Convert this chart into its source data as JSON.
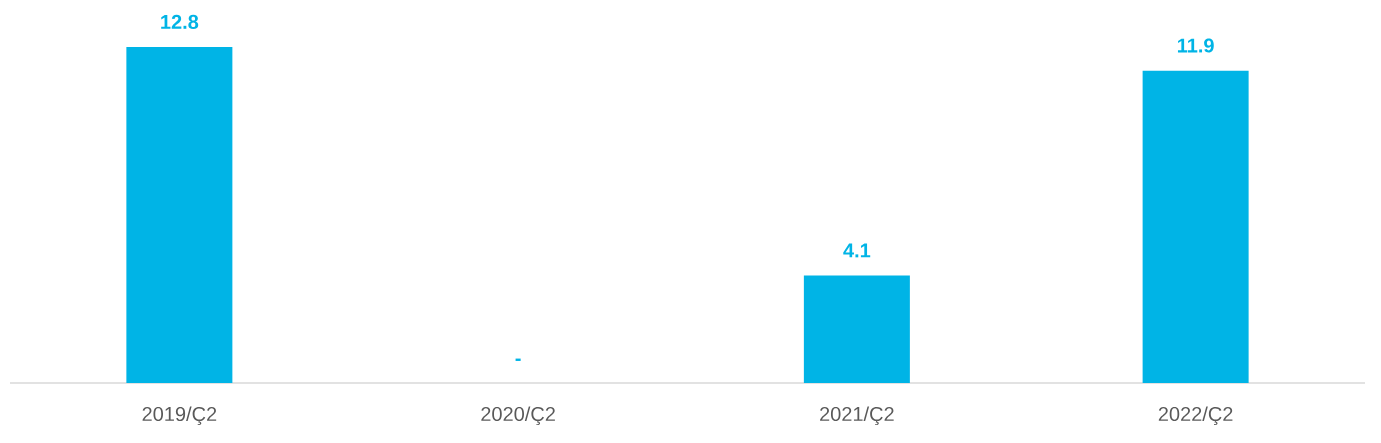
{
  "chart_data": {
    "type": "bar",
    "categories": [
      "2019/Ç2",
      "2020/Ç2",
      "2021/Ç2",
      "2022/Ç2"
    ],
    "values": [
      12.8,
      0,
      4.1,
      11.9
    ],
    "value_labels": [
      "12.8",
      "-",
      "4.1",
      "11.9"
    ],
    "color": "#00b4e6",
    "tick_labels": "x"
  }
}
